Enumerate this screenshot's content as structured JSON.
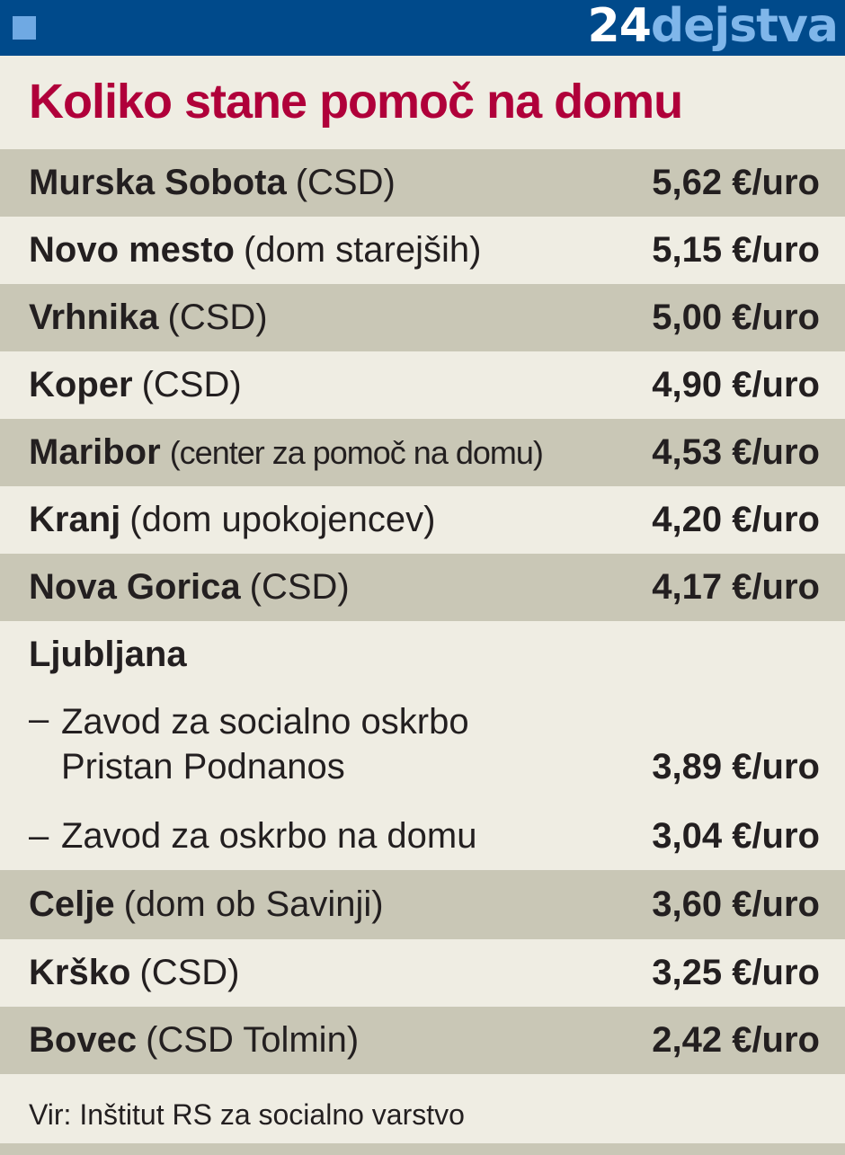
{
  "header": {
    "brand_number": "24",
    "brand_word": "dejstva",
    "accent_color": "#004a8b",
    "brand_light_color": "#7fb6ea"
  },
  "title": "Koliko stane pomoč na domu",
  "title_color": "#b0003a",
  "rows": [
    {
      "city": "Murska Sobota",
      "org": "(CSD)",
      "value": "5,62 €/uro"
    },
    {
      "city": "Novo mesto",
      "org": "(dom starejših)",
      "value": "5,15 €/uro"
    },
    {
      "city": "Vrhnika",
      "org": "(CSD)",
      "value": "5,00 €/uro"
    },
    {
      "city": "Koper",
      "org": "(CSD)",
      "value": "4,90 €/uro"
    },
    {
      "city": "Maribor",
      "org": "(center za pomoč na domu)",
      "value": "4,53 €/uro"
    },
    {
      "city": "Kranj",
      "org": "(dom upokojencev)",
      "value": "4,20 €/uro"
    },
    {
      "city": "Nova Gorica",
      "org": "(CSD)",
      "value": "4,17 €/uro"
    }
  ],
  "ljubljana": {
    "city": "Ljubljana",
    "sub": [
      {
        "dash": "–",
        "line1": "Zavod za socialno oskrbo",
        "line2": "Pristan Podnanos",
        "value": "3,89 €/uro"
      },
      {
        "dash": "–",
        "line1": "Zavod za oskrbo na domu",
        "value": "3,04 €/uro"
      }
    ]
  },
  "rows_after": [
    {
      "city": "Celje",
      "org": "(dom ob Savinji)",
      "value": "3,60 €/uro"
    },
    {
      "city": "Krško",
      "org": "(CSD)",
      "value": "3,25 €/uro"
    },
    {
      "city": "Bovec",
      "org": "(CSD Tolmin)",
      "value": "2,42 €/uro"
    }
  ],
  "source": "Vir: Inštitut RS za socialno varstvo",
  "chart_data": {
    "type": "table",
    "title": "Koliko stane pomoč na domu",
    "columns": [
      "",
      ""
    ],
    "unit": "€/uro",
    "rows": [
      [
        "Murska Sobota (CSD)",
        5.62
      ],
      [
        "Novo mesto (dom starejših)",
        5.15
      ],
      [
        "Vrhnika (CSD)",
        5.0
      ],
      [
        "Koper (CSD)",
        4.9
      ],
      [
        "Maribor (center za pomoč na domu)",
        4.53
      ],
      [
        "Kranj (dom upokojencev)",
        4.2
      ],
      [
        "Nova Gorica (CSD)",
        4.17
      ],
      [
        "Ljubljana – Zavod za socialno oskrbo Pristan Podnanos",
        3.89
      ],
      [
        "Ljubljana – Zavod za oskrbo na domu",
        3.04
      ],
      [
        "Celje (dom ob Savinji)",
        3.6
      ],
      [
        "Krško (CSD)",
        3.25
      ],
      [
        "Bovec (CSD Tolmin)",
        2.42
      ]
    ],
    "source": "Vir: Inštitut RS za socialno varstvo"
  }
}
